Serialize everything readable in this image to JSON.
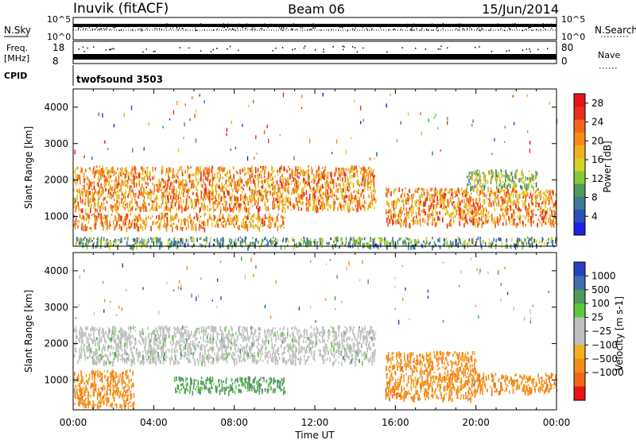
{
  "header": {
    "station": "Inuvik (fitACF)",
    "beam": "Beam 06",
    "date": "15/Jun/2014"
  },
  "top_strips": {
    "nsky": {
      "label": "N.Sky",
      "tick_labels": [
        "10^5",
        "10^0"
      ],
      "right_label": "N.Search",
      "right_tick_labels": [
        "10^5",
        "10^0"
      ]
    },
    "freq": {
      "label_line1": "Freq.",
      "label_line2": "[MHz]",
      "tick_labels": [
        "18",
        "8"
      ],
      "right_label": "Nave",
      "right_tick_labels": [
        "80",
        "0"
      ]
    },
    "cpid": {
      "label": "CPID",
      "value": "twofsound 3503"
    }
  },
  "chart_data": [
    {
      "type": "heatmap",
      "title": "",
      "xlabel": "",
      "ylabel": "Slant Range [km]",
      "x_tick_labels": [
        "00:00",
        "04:00",
        "08:00",
        "12:00",
        "16:00",
        "20:00",
        "00:00"
      ],
      "xlim_hours": [
        0,
        24
      ],
      "ylim": [
        180,
        4500
      ],
      "y_ticks": [
        1000,
        2000,
        3000,
        4000
      ],
      "colorbar": {
        "label": "Power [dB]",
        "ticks": [
          4,
          8,
          12,
          16,
          20,
          24,
          28
        ],
        "range": [
          0,
          30
        ],
        "colors": [
          "#1f1fe8",
          "#2a4fb8",
          "#3f7a98",
          "#4f9a5c",
          "#88c63a",
          "#d6d228",
          "#f2b020",
          "#f38d17",
          "#f3661a",
          "#ea2f1a",
          "#e8141a"
        ]
      },
      "echo_bands": [
        {
          "from_h": 0.0,
          "to_h": 15.0,
          "range_km": [
            1200,
            2400
          ],
          "level": 20
        },
        {
          "from_h": 0.0,
          "to_h": 10.5,
          "range_km": [
            700,
            1100
          ],
          "level": 22
        },
        {
          "from_h": 0.0,
          "to_h": 24.0,
          "range_km": [
            200,
            450
          ],
          "level": 10
        },
        {
          "from_h": 15.5,
          "to_h": 24.0,
          "range_km": [
            800,
            1800
          ],
          "level": 20
        },
        {
          "from_h": 19.5,
          "to_h": 23.0,
          "range_km": [
            1800,
            2300
          ],
          "level": 12
        }
      ]
    },
    {
      "type": "heatmap",
      "title": "",
      "xlabel": "Time UT",
      "ylabel": "Slant Range [km]",
      "x_tick_labels": [
        "00:00",
        "04:00",
        "08:00",
        "12:00",
        "16:00",
        "20:00",
        "00:00"
      ],
      "xlim_hours": [
        0,
        24
      ],
      "ylim": [
        180,
        4500
      ],
      "y_ticks": [
        1000,
        2000,
        3000,
        4000
      ],
      "colorbar": {
        "label": "Velocity [m s-1]",
        "ticks": [
          "1000",
          "500",
          "100",
          "25",
          "−25",
          "−100",
          "−500",
          "−1000"
        ],
        "colors": [
          "#2a3fc8",
          "#3f6fb0",
          "#4f9a5c",
          "#5fc83a",
          "#c0c0c0",
          "#c0c0c0",
          "#f2b020",
          "#f38d17",
          "#f3661a",
          "#e8141a"
        ]
      },
      "echo_bands": [
        {
          "from_h": 0.0,
          "to_h": 15.0,
          "range_km": [
            1500,
            2500
          ],
          "velocity": "−25 to 25"
        },
        {
          "from_h": 0.0,
          "to_h": 3.0,
          "range_km": [
            300,
            1300
          ],
          "velocity": "−500 to −100"
        },
        {
          "from_h": 5.0,
          "to_h": 10.5,
          "range_km": [
            700,
            1100
          ],
          "velocity": "100 to 500"
        },
        {
          "from_h": 15.5,
          "to_h": 20.0,
          "range_km": [
            500,
            1800
          ],
          "velocity": "−500 to −100"
        },
        {
          "from_h": 20.0,
          "to_h": 24.0,
          "range_km": [
            700,
            1200
          ],
          "velocity": "−500 to −100"
        }
      ]
    }
  ]
}
